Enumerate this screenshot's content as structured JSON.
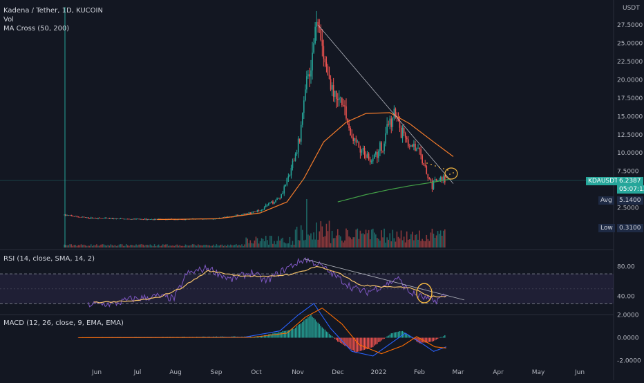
{
  "header": {
    "symbol_line": "Kadena / Tether, 1D, KUCOIN",
    "vol_label": "Vol",
    "ma_label": "MA Cross (50, 200)"
  },
  "price_axis": {
    "unit": "USDT",
    "ticks": [
      "27.5000",
      "25.0000",
      "22.5000",
      "20.0000",
      "17.5000",
      "15.0000",
      "12.5000",
      "10.0000",
      "7.5000",
      "5.0000",
      "2.5000"
    ],
    "tick_values": [
      27.5,
      25,
      22.5,
      20,
      17.5,
      15,
      12.5,
      10,
      7.5,
      5,
      2.5
    ]
  },
  "tags": {
    "symbol": "KDAUSDT",
    "last_price": "6.2387",
    "countdown": "05:07:13",
    "avg_label": "Avg",
    "avg_value": "5.1400",
    "low_label": "Low",
    "low_value": "0.3100"
  },
  "rsi": {
    "label": "RSI (14, close, SMA, 14, 2)",
    "ticks": [
      "80.00",
      "40.00"
    ],
    "tick_values": [
      80,
      40
    ],
    "upper_band": 70,
    "lower_band": 30
  },
  "macd": {
    "label": "MACD (12, 26, close, 9, EMA, EMA)",
    "ticks": [
      "2.0000",
      "0.0000",
      "-2.0000"
    ],
    "tick_values": [
      2,
      0,
      -2
    ]
  },
  "time_axis": {
    "labels": [
      "Jun",
      "Jul",
      "Aug",
      "Sep",
      "Oct",
      "Nov",
      "Dec",
      "2022",
      "Feb",
      "Mar",
      "Apr",
      "May",
      "Jun"
    ]
  },
  "colors": {
    "background": "#131722",
    "up": "#26a69a",
    "down": "#ef5350",
    "ma50": "#f57c2b",
    "ma200": "#43a047",
    "rsi_line": "#7e57c2",
    "rsi_ma": "#f5c26b",
    "macd_line": "#2962ff",
    "signal_line": "#ff6d00",
    "annotation": "#f5b942",
    "tag_green": "#26a69a",
    "tag_dark": "#1e2a44"
  },
  "chart_data": [
    {
      "type": "candlestick",
      "xlabel": "",
      "ylabel": "USDT",
      "ylim": [
        0,
        28
      ],
      "x_range": [
        "2021-05-15",
        "2022-06-30"
      ],
      "description_series": [
        {
          "name": "Price",
          "points": [
            [
              "2021-05-15",
              1.5
            ],
            [
              "2021-06-01",
              1.1
            ],
            [
              "2021-07-01",
              0.95
            ],
            [
              "2021-08-01",
              0.9
            ],
            [
              "2021-09-01",
              1.0
            ],
            [
              "2021-09-20",
              1.6
            ],
            [
              "2021-10-01",
              2.2
            ],
            [
              "2021-10-15",
              4.0
            ],
            [
              "2021-10-22",
              7.0
            ],
            [
              "2021-10-29",
              12.0
            ],
            [
              "2021-11-03",
              20.0
            ],
            [
              "2021-11-08",
              25.0
            ],
            [
              "2021-11-11",
              27.5
            ],
            [
              "2021-11-15",
              22.0
            ],
            [
              "2021-11-22",
              18.0
            ],
            [
              "2021-11-29",
              16.0
            ],
            [
              "2021-12-05",
              12.0
            ],
            [
              "2021-12-12",
              10.5
            ],
            [
              "2021-12-19",
              9.0
            ],
            [
              "2021-12-27",
              11.0
            ],
            [
              "2022-01-01",
              14.0
            ],
            [
              "2022-01-04",
              16.5
            ],
            [
              "2022-01-08",
              13.0
            ],
            [
              "2022-01-15",
              11.0
            ],
            [
              "2022-01-22",
              10.0
            ],
            [
              "2022-01-27",
              7.0
            ],
            [
              "2022-01-31",
              5.5
            ],
            [
              "2022-02-04",
              6.5
            ],
            [
              "2022-02-09",
              6.2387
            ]
          ]
        },
        {
          "name": "MA 50",
          "points": [
            [
              "2021-07-20",
              0.9
            ],
            [
              "2021-09-01",
              1.0
            ],
            [
              "2021-10-01",
              1.8
            ],
            [
              "2021-10-20",
              3.3
            ],
            [
              "2021-11-01",
              6.5
            ],
            [
              "2021-11-15",
              11.5
            ],
            [
              "2021-12-01",
              14.2
            ],
            [
              "2021-12-15",
              15.4
            ],
            [
              "2022-01-01",
              15.5
            ],
            [
              "2022-01-15",
              14.0
            ],
            [
              "2022-02-01",
              11.5
            ],
            [
              "2022-02-15",
              9.5
            ]
          ]
        },
        {
          "name": "MA 200",
          "points": [
            [
              "2021-11-25",
              3.3
            ],
            [
              "2021-12-15",
              4.3
            ],
            [
              "2022-01-01",
              5.0
            ],
            [
              "2022-01-15",
              5.5
            ],
            [
              "2022-02-01",
              6.0
            ],
            [
              "2022-02-12",
              6.4
            ]
          ]
        }
      ]
    },
    {
      "type": "line",
      "ylabel": "RSI",
      "ylim": [
        10,
        95
      ],
      "description_series": [
        {
          "name": "RSI",
          "points": [
            [
              "2021-06-01",
              29
            ],
            [
              "2021-06-20",
              30
            ],
            [
              "2021-07-01",
              36
            ],
            [
              "2021-07-20",
              40
            ],
            [
              "2021-08-01",
              37
            ],
            [
              "2021-08-10",
              70
            ],
            [
              "2021-08-25",
              78
            ],
            [
              "2021-09-10",
              62
            ],
            [
              "2021-09-25",
              72
            ],
            [
              "2021-10-05",
              60
            ],
            [
              "2021-10-20",
              78
            ],
            [
              "2021-11-02",
              90
            ],
            [
              "2021-11-12",
              82
            ],
            [
              "2021-11-25",
              65
            ],
            [
              "2021-12-05",
              52
            ],
            [
              "2021-12-15",
              45
            ],
            [
              "2022-01-01",
              58
            ],
            [
              "2022-01-06",
              65
            ],
            [
              "2022-01-15",
              45
            ],
            [
              "2022-01-25",
              38
            ],
            [
              "2022-02-01",
              33
            ],
            [
              "2022-02-10",
              42
            ]
          ]
        },
        {
          "name": "RSI MA",
          "points": [
            [
              "2021-06-05",
              32
            ],
            [
              "2021-07-01",
              33
            ],
            [
              "2021-07-20",
              38
            ],
            [
              "2021-08-05",
              50
            ],
            [
              "2021-08-25",
              74
            ],
            [
              "2021-09-15",
              68
            ],
            [
              "2021-10-05",
              66
            ],
            [
              "2021-10-25",
              70
            ],
            [
              "2021-11-10",
              80
            ],
            [
              "2021-11-25",
              72
            ],
            [
              "2021-12-10",
              55
            ],
            [
              "2022-01-01",
              52
            ],
            [
              "2022-01-15",
              52
            ],
            [
              "2022-01-30",
              40
            ],
            [
              "2022-02-10",
              40
            ]
          ]
        }
      ]
    },
    {
      "type": "bar",
      "ylabel": "MACD",
      "ylim": [
        -2.4,
        2.4
      ]
    }
  ]
}
